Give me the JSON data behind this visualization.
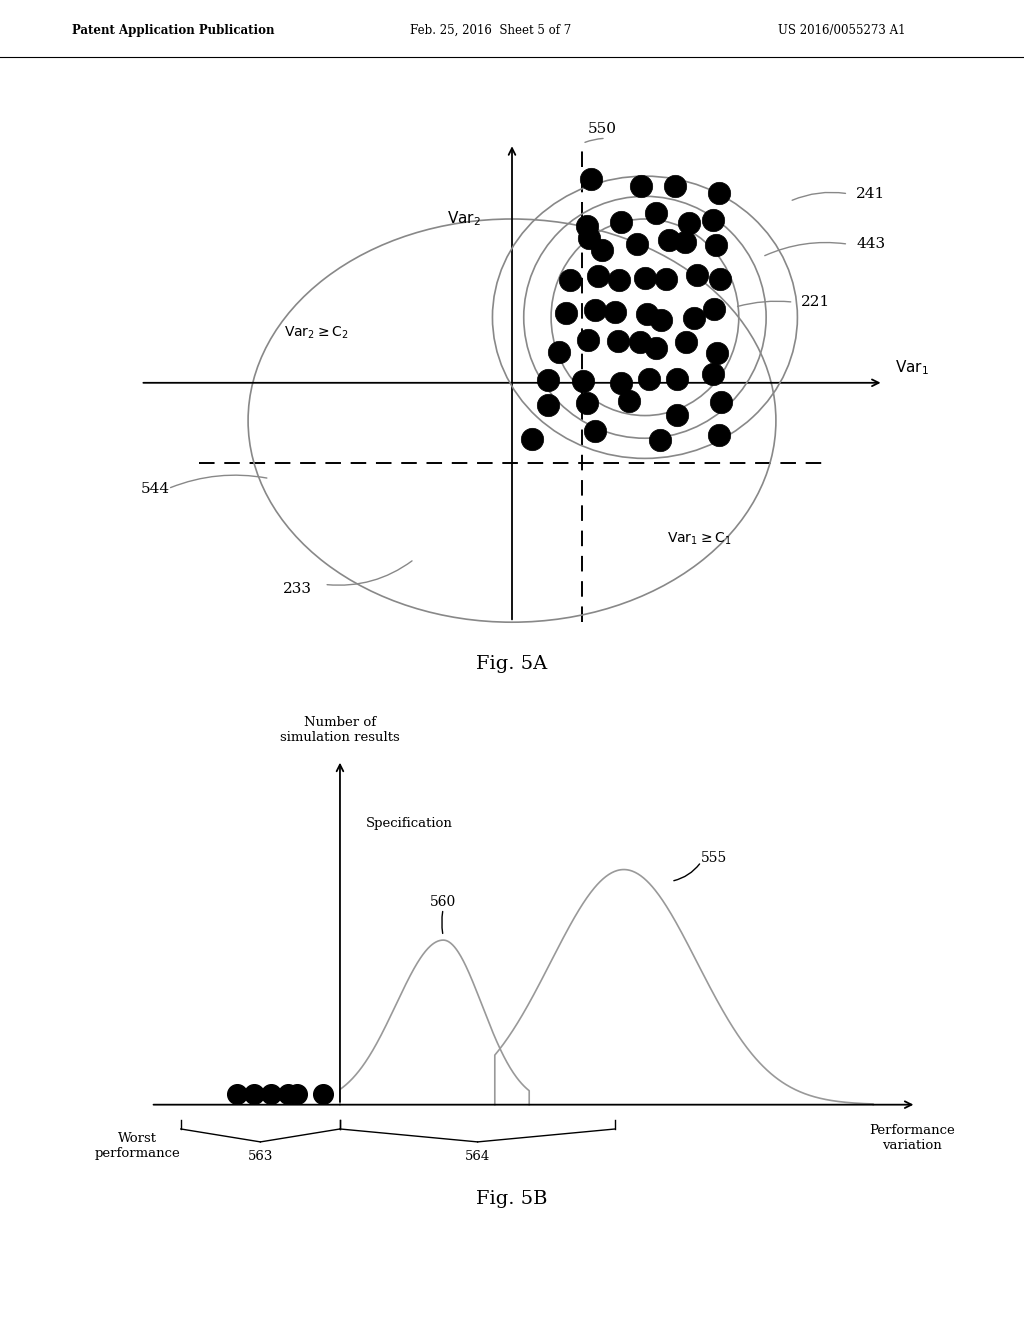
{
  "bg_color": "#ffffff",
  "header_text": "Patent Application Publication",
  "header_date": "Feb. 25, 2016  Sheet 5 of 7",
  "header_patent": "US 2016/0055273 A1",
  "fig5a_label": "Fig. 5A",
  "fig5b_label": "Fig. 5B",
  "fig5a": {
    "label_550": "550",
    "label_241": "241",
    "label_443": "443",
    "label_221": "221",
    "label_544": "544",
    "label_233": "233"
  },
  "fig5b": {
    "label_num_sim": "Number of\nsimulation results",
    "label_spec": "Specification",
    "label_555": "555",
    "label_560": "560",
    "label_worst": "Worst\nperformance",
    "label_perf_var": "Performance\nvariation",
    "label_563": "563",
    "label_564": "564"
  }
}
